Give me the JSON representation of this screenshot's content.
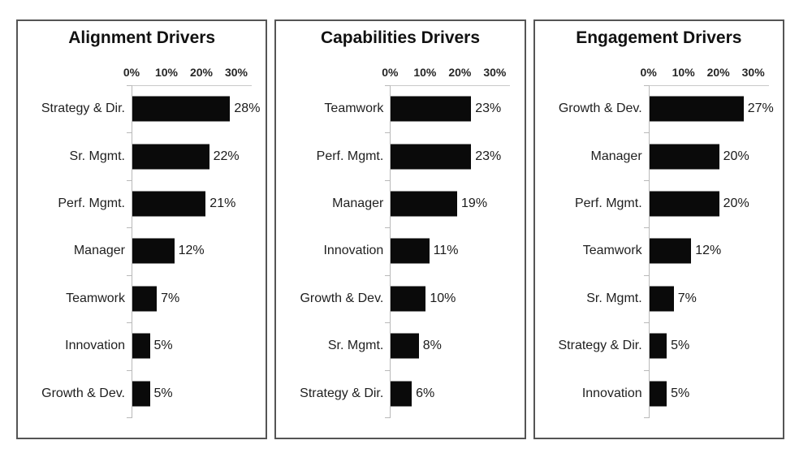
{
  "page": {
    "background": "#ffffff",
    "panel_border_color": "#555555",
    "bar_color": "#0a0a0a",
    "axis_color": "#b9b9b9",
    "gridline_color": "#c9c9c9"
  },
  "chart_data": [
    {
      "type": "bar",
      "orientation": "horizontal",
      "title": "Alignment Drivers",
      "xlabel": "",
      "ylabel": "",
      "xlim": [
        0,
        30
      ],
      "x_tick_labels": [
        "0%",
        "10%",
        "20%",
        "30%"
      ],
      "x_tick_values": [
        0,
        10,
        20,
        30
      ],
      "grid": "top-line-only",
      "legend": "none",
      "categories": [
        "Strategy & Dir.",
        "Sr. Mgmt.",
        "Perf. Mgmt.",
        "Manager",
        "Teamwork",
        "Innovation",
        "Growth & Dev."
      ],
      "values": [
        28,
        22,
        21,
        12,
        7,
        5,
        5
      ],
      "value_labels": [
        "28%",
        "22%",
        "21%",
        "12%",
        "7%",
        "5%",
        "5%"
      ],
      "bar_color": "#0a0a0a"
    },
    {
      "type": "bar",
      "orientation": "horizontal",
      "title": "Capabilities Drivers",
      "xlabel": "",
      "ylabel": "",
      "xlim": [
        0,
        30
      ],
      "x_tick_labels": [
        "0%",
        "10%",
        "20%",
        "30%"
      ],
      "x_tick_values": [
        0,
        10,
        20,
        30
      ],
      "grid": "top-line-only",
      "legend": "none",
      "categories": [
        "Teamwork",
        "Perf. Mgmt.",
        "Manager",
        "Innovation",
        "Growth & Dev.",
        "Sr. Mgmt.",
        "Strategy & Dir."
      ],
      "values": [
        23,
        23,
        19,
        11,
        10,
        8,
        6
      ],
      "value_labels": [
        "23%",
        "23%",
        "19%",
        "11%",
        "10%",
        "8%",
        "6%"
      ],
      "bar_color": "#0a0a0a"
    },
    {
      "type": "bar",
      "orientation": "horizontal",
      "title": "Engagement Drivers",
      "xlabel": "",
      "ylabel": "",
      "xlim": [
        0,
        30
      ],
      "x_tick_labels": [
        "0%",
        "10%",
        "20%",
        "30%"
      ],
      "x_tick_values": [
        0,
        10,
        20,
        30
      ],
      "grid": "top-line-only",
      "legend": "none",
      "categories": [
        "Growth & Dev.",
        "Manager",
        "Perf. Mgmt.",
        "Teamwork",
        "Sr. Mgmt.",
        "Strategy & Dir.",
        "Innovation"
      ],
      "values": [
        27,
        20,
        20,
        12,
        7,
        5,
        5
      ],
      "value_labels": [
        "27%",
        "20%",
        "20%",
        "12%",
        "7%",
        "5%",
        "5%"
      ],
      "bar_color": "#0a0a0a"
    }
  ]
}
